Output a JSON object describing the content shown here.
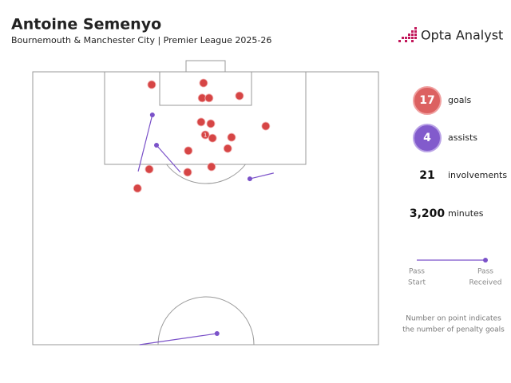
{
  "chart_data": {
    "type": "pitch",
    "title": "Antoine Semenyo",
    "subtitle": "Bournemouth & Manchester City | Premier League 2025-26",
    "brand": "Opta Analyst",
    "xlim": [
      0,
      100
    ],
    "ylim": [
      0,
      100
    ],
    "goal_color": "#d64545",
    "assist_color": "#7b52c9",
    "goals": [
      {
        "x": 34.4,
        "y": 4.7
      },
      {
        "x": 49.4,
        "y": 4.1
      },
      {
        "x": 49.0,
        "y": 9.6
      },
      {
        "x": 51.0,
        "y": 9.6
      },
      {
        "x": 59.8,
        "y": 8.8
      },
      {
        "x": 48.7,
        "y": 18.4
      },
      {
        "x": 51.5,
        "y": 19.0
      },
      {
        "x": 67.4,
        "y": 19.9
      },
      {
        "x": 49.9,
        "y": 23.1,
        "penalty_goals": 1
      },
      {
        "x": 52.0,
        "y": 24.3
      },
      {
        "x": 57.5,
        "y": 24.0
      },
      {
        "x": 56.4,
        "y": 28.1
      },
      {
        "x": 45.0,
        "y": 28.9
      },
      {
        "x": 33.7,
        "y": 35.7
      },
      {
        "x": 44.8,
        "y": 36.8
      },
      {
        "x": 51.7,
        "y": 34.8
      },
      {
        "x": 30.3,
        "y": 42.7
      }
    ],
    "assists": [
      {
        "start": {
          "x": 30.5,
          "y": 36.5
        },
        "end": {
          "x": 34.6,
          "y": 15.8
        }
      },
      {
        "start": {
          "x": 42.7,
          "y": 36.8
        },
        "end": {
          "x": 35.8,
          "y": 26.9
        }
      },
      {
        "start": {
          "x": 69.7,
          "y": 37.1
        },
        "end": {
          "x": 62.8,
          "y": 39.2
        }
      },
      {
        "start": {
          "x": 30.9,
          "y": 100
        },
        "end": {
          "x": 53.3,
          "y": 95.9
        }
      }
    ],
    "stats": [
      {
        "value": 17,
        "label": "goals"
      },
      {
        "value": 4,
        "label": "assists"
      },
      {
        "value": 21,
        "label": "involvements"
      },
      {
        "value": {
          "value": 3200,
          "label": "3,200"
        },
        "label": "minutes"
      }
    ],
    "legend": {
      "start": [
        "Pass",
        "Start"
      ],
      "received": [
        "Pass",
        "Received"
      ]
    },
    "note": [
      "Number on point indicates",
      "the number of penalty goals"
    ]
  }
}
